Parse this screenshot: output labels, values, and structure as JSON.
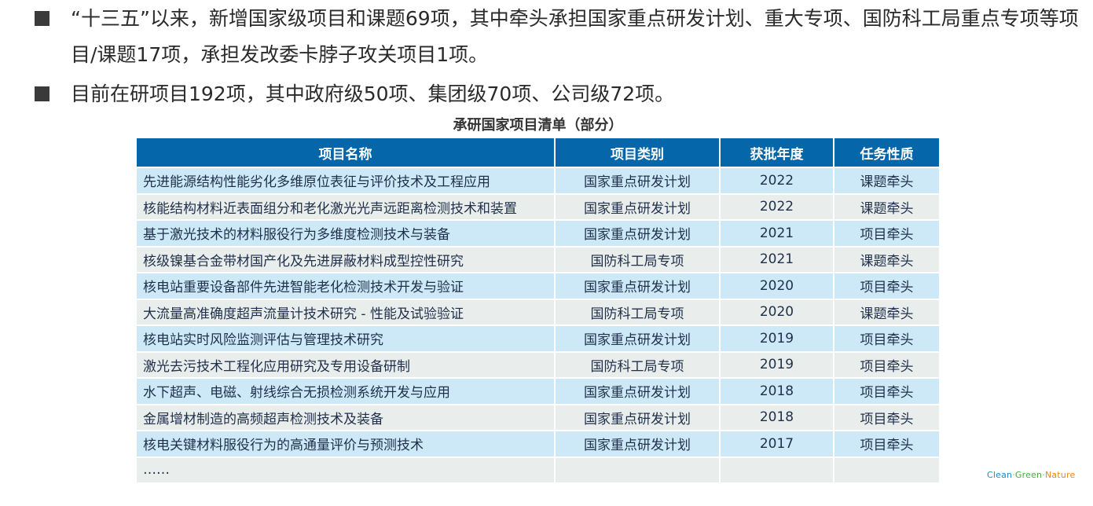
{
  "bullets": [
    "“十三五”以来，新增国家级项目和课题69项，其中牵头承担国家重点研发计划、重大专项、国防科工局重点专项等项目/课题17项，承担发改委卡脖子攻关项目1项。",
    "目前在研项目192项，其中政府级50项、集团级70项、公司级72项。"
  ],
  "table": {
    "title": "承研国家项目清单（部分）",
    "headers": [
      "项目名称",
      "项目类别",
      "获批年度",
      "任务性质"
    ],
    "rows": [
      [
        "先进能源结构性能劣化多维原位表征与评价技术及工程应用",
        "国家重点研发计划",
        "2022",
        "课题牵头"
      ],
      [
        "核能结构材料近表面组分和老化激光光声远距离检测技术和装置",
        "国家重点研发计划",
        "2022",
        "课题牵头"
      ],
      [
        "基于激光技术的材料服役行为多维度检测技术与装备",
        "国家重点研发计划",
        "2021",
        "项目牵头"
      ],
      [
        "核级镍基合金带材国产化及先进屏蔽材料成型控性研究",
        "国防科工局专项",
        "2021",
        "课题牵头"
      ],
      [
        "核电站重要设备部件先进智能老化检测技术开发与验证",
        "国家重点研发计划",
        "2020",
        "项目牵头"
      ],
      [
        "大流量高准确度超声流量计技术研究 - 性能及试验验证",
        "国防科工局专项",
        "2020",
        "课题牵头"
      ],
      [
        "核电站实时风险监测评估与管理技术研究",
        "国家重点研发计划",
        "2019",
        "项目牵头"
      ],
      [
        "激光去污技术工程化应用研究及专用设备研制",
        "国防科工局专项",
        "2019",
        "项目牵头"
      ],
      [
        "水下超声、电磁、射线综合无损检测系统开发与应用",
        "国家重点研发计划",
        "2018",
        "项目牵头"
      ],
      [
        "金属增材制造的高频超声检测技术及装备",
        "国家重点研发计划",
        "2018",
        "项目牵头"
      ],
      [
        "核电关键材料服役行为的高通量评价与预测技术",
        "国家重点研发计划",
        "2017",
        "项目牵头"
      ]
    ],
    "more": "……"
  },
  "brand": {
    "clean": "Clean",
    "sep": "·",
    "green": "Green",
    "nature": "Nature"
  }
}
